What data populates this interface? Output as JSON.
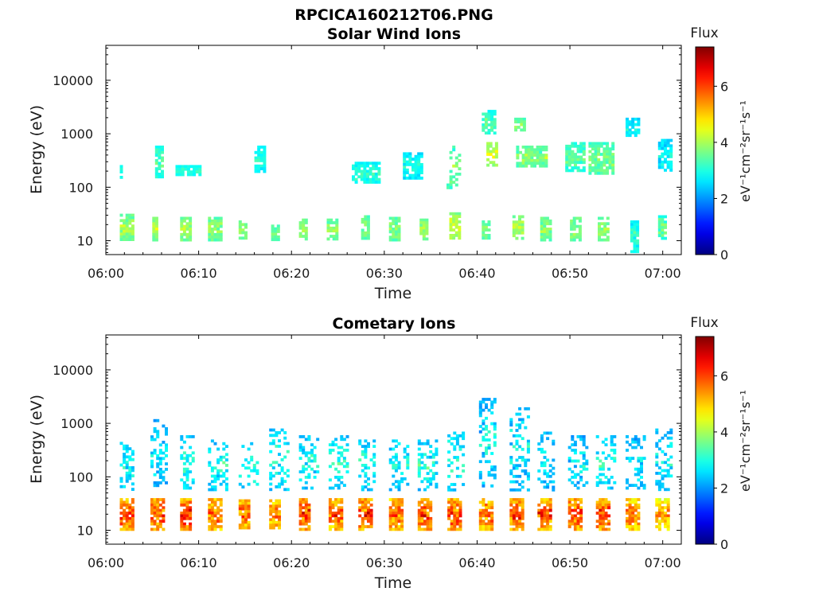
{
  "figure_title": "RPCICA160212T06.PNG",
  "chart_data": [
    {
      "type": "heatmap",
      "title": "Solar Wind Ions",
      "xlabel": "Time",
      "ylabel": "Energy (eV)",
      "x_ticks": [
        "06:00",
        "06:10",
        "06:20",
        "06:30",
        "06:40",
        "06:50",
        "07:00"
      ],
      "y_ticks": [
        "10",
        "100",
        "1000",
        "10000"
      ],
      "x_range_minutes": [
        0,
        62
      ],
      "y_range_ev": [
        5.5,
        45000
      ],
      "y_scale": "log",
      "colorbar": {
        "label": "Flux",
        "unit": "eV⁻¹cm⁻²sr⁻¹s⁻¹",
        "ticks": [
          "0",
          "2",
          "4",
          "6"
        ],
        "range": [
          0,
          7.4
        ]
      },
      "clusters": [
        {
          "t": [
            1.5,
            2.8
          ],
          "e": [
            11,
            32
          ],
          "flux": [
            3.0,
            4.6
          ]
        },
        {
          "t": [
            5.0,
            5.6
          ],
          "e": [
            11,
            28
          ],
          "flux": [
            3.2,
            4.6
          ]
        },
        {
          "t": [
            8.0,
            9.0
          ],
          "e": [
            11,
            28
          ],
          "flux": [
            3.2,
            4.4
          ]
        },
        {
          "t": [
            11.0,
            12.3
          ],
          "e": [
            11,
            28
          ],
          "flux": [
            3.0,
            4.4
          ]
        },
        {
          "t": [
            14.3,
            15.0
          ],
          "e": [
            11,
            24
          ],
          "flux": [
            3.2,
            4.2
          ]
        },
        {
          "t": [
            17.8,
            18.6
          ],
          "e": [
            11,
            20
          ],
          "flux": [
            3.0,
            4.0
          ]
        },
        {
          "t": [
            20.8,
            21.5
          ],
          "e": [
            11,
            26
          ],
          "flux": [
            3.2,
            4.3
          ]
        },
        {
          "t": [
            23.8,
            25.0
          ],
          "e": [
            11,
            26
          ],
          "flux": [
            3.0,
            4.2
          ]
        },
        {
          "t": [
            27.5,
            28.2
          ],
          "e": [
            11,
            30
          ],
          "flux": [
            3.0,
            4.2
          ]
        },
        {
          "t": [
            30.5,
            31.6
          ],
          "e": [
            11,
            28
          ],
          "flux": [
            3.0,
            4.4
          ]
        },
        {
          "t": [
            33.8,
            34.5
          ],
          "e": [
            11,
            26
          ],
          "flux": [
            3.2,
            4.5
          ]
        },
        {
          "t": [
            37.0,
            38.0
          ],
          "e": [
            11,
            34
          ],
          "flux": [
            3.3,
            4.8
          ]
        },
        {
          "t": [
            40.5,
            41.3
          ],
          "e": [
            11,
            24
          ],
          "flux": [
            3.0,
            4.2
          ]
        },
        {
          "t": [
            43.8,
            44.8
          ],
          "e": [
            11,
            30
          ],
          "flux": [
            3.2,
            4.6
          ]
        },
        {
          "t": [
            46.8,
            47.8
          ],
          "e": [
            11,
            28
          ],
          "flux": [
            3.0,
            4.4
          ]
        },
        {
          "t": [
            50.0,
            51.0
          ],
          "e": [
            11,
            28
          ],
          "flux": [
            3.0,
            4.4
          ]
        },
        {
          "t": [
            53.0,
            54.0
          ],
          "e": [
            11,
            28
          ],
          "flux": [
            3.0,
            4.4
          ]
        },
        {
          "t": [
            56.5,
            57.2
          ],
          "e": [
            6,
            24
          ],
          "flux": [
            2.2,
            3.8
          ]
        },
        {
          "t": [
            59.5,
            60.3
          ],
          "e": [
            11,
            30
          ],
          "flux": [
            2.6,
            4.2
          ]
        },
        {
          "t": [
            1.5,
            1.8
          ],
          "e": [
            150,
            260
          ],
          "flux": [
            2.4,
            3.4
          ]
        },
        {
          "t": [
            5.3,
            6.0
          ],
          "e": [
            160,
            600
          ],
          "flux": [
            2.6,
            3.8
          ]
        },
        {
          "t": [
            7.5,
            10.0
          ],
          "e": [
            180,
            260
          ],
          "flux": [
            2.6,
            3.4
          ]
        },
        {
          "t": [
            16.0,
            17.0
          ],
          "e": [
            200,
            600
          ],
          "flux": [
            2.4,
            3.4
          ]
        },
        {
          "t": [
            26.5,
            29.5
          ],
          "e": [
            120,
            300
          ],
          "flux": [
            2.4,
            3.6
          ]
        },
        {
          "t": [
            32.0,
            34.0
          ],
          "e": [
            150,
            450
          ],
          "flux": [
            2.2,
            3.4
          ]
        },
        {
          "t": [
            36.7,
            38.2
          ],
          "e": [
            100,
            600
          ],
          "flux": [
            2.6,
            4.2
          ]
        },
        {
          "t": [
            40.5,
            41.8
          ],
          "e": [
            1100,
            2800
          ],
          "flux": [
            2.4,
            4.0
          ]
        },
        {
          "t": [
            41.0,
            42.2
          ],
          "e": [
            250,
            700
          ],
          "flux": [
            3.4,
            4.8
          ]
        },
        {
          "t": [
            44.0,
            45.0
          ],
          "e": [
            1200,
            2000
          ],
          "flux": [
            3.0,
            4.2
          ]
        },
        {
          "t": [
            44.2,
            47.5
          ],
          "e": [
            250,
            600
          ],
          "flux": [
            2.8,
            4.4
          ]
        },
        {
          "t": [
            49.5,
            51.5
          ],
          "e": [
            200,
            700
          ],
          "flux": [
            2.6,
            4.0
          ]
        },
        {
          "t": [
            52.0,
            54.5
          ],
          "e": [
            180,
            700
          ],
          "flux": [
            2.8,
            4.2
          ]
        },
        {
          "t": [
            56.0,
            57.5
          ],
          "e": [
            900,
            2000
          ],
          "flux": [
            2.2,
            3.2
          ]
        },
        {
          "t": [
            59.5,
            61.0
          ],
          "e": [
            200,
            800
          ],
          "flux": [
            2.0,
            3.4
          ]
        }
      ]
    },
    {
      "type": "heatmap",
      "title": "Cometary Ions",
      "xlabel": "Time",
      "ylabel": "Energy (eV)",
      "x_ticks": [
        "06:00",
        "06:10",
        "06:20",
        "06:30",
        "06:40",
        "06:50",
        "07:00"
      ],
      "y_ticks": [
        "10",
        "100",
        "1000",
        "10000"
      ],
      "x_range_minutes": [
        0,
        62
      ],
      "y_range_ev": [
        5.5,
        45000
      ],
      "y_scale": "log",
      "colorbar": {
        "label": "Flux",
        "unit": "eV⁻¹cm⁻²sr⁻¹s⁻¹",
        "ticks": [
          "0",
          "2",
          "4",
          "6"
        ],
        "range": [
          0,
          7.4
        ]
      },
      "clusters": [
        {
          "t": [
            1.5,
            3.0
          ],
          "e": [
            11,
            40
          ],
          "flux": [
            4.4,
            7.0
          ]
        },
        {
          "t": [
            4.8,
            6.2
          ],
          "e": [
            11,
            40
          ],
          "flux": [
            4.4,
            7.0
          ]
        },
        {
          "t": [
            8.0,
            9.2
          ],
          "e": [
            11,
            40
          ],
          "flux": [
            4.4,
            7.2
          ]
        },
        {
          "t": [
            11.0,
            12.3
          ],
          "e": [
            11,
            40
          ],
          "flux": [
            4.2,
            6.8
          ]
        },
        {
          "t": [
            14.3,
            15.5
          ],
          "e": [
            11,
            38
          ],
          "flux": [
            4.2,
            6.8
          ]
        },
        {
          "t": [
            17.6,
            18.8
          ],
          "e": [
            11,
            38
          ],
          "flux": [
            4.0,
            6.6
          ]
        },
        {
          "t": [
            20.8,
            22.0
          ],
          "e": [
            11,
            40
          ],
          "flux": [
            4.4,
            7.0
          ]
        },
        {
          "t": [
            24.0,
            25.3
          ],
          "e": [
            11,
            40
          ],
          "flux": [
            4.2,
            6.8
          ]
        },
        {
          "t": [
            27.2,
            28.5
          ],
          "e": [
            11,
            40
          ],
          "flux": [
            4.4,
            7.0
          ]
        },
        {
          "t": [
            30.5,
            31.8
          ],
          "e": [
            11,
            40
          ],
          "flux": [
            4.2,
            6.8
          ]
        },
        {
          "t": [
            33.6,
            35.0
          ],
          "e": [
            11,
            40
          ],
          "flux": [
            4.4,
            7.0
          ]
        },
        {
          "t": [
            36.8,
            38.2
          ],
          "e": [
            11,
            40
          ],
          "flux": [
            4.4,
            7.0
          ]
        },
        {
          "t": [
            40.2,
            41.5
          ],
          "e": [
            11,
            40
          ],
          "flux": [
            4.2,
            6.8
          ]
        },
        {
          "t": [
            43.5,
            44.8
          ],
          "e": [
            11,
            40
          ],
          "flux": [
            4.4,
            7.0
          ]
        },
        {
          "t": [
            46.5,
            47.8
          ],
          "e": [
            11,
            40
          ],
          "flux": [
            4.2,
            6.8
          ]
        },
        {
          "t": [
            49.8,
            51.2
          ],
          "e": [
            11,
            40
          ],
          "flux": [
            4.4,
            7.0
          ]
        },
        {
          "t": [
            52.8,
            54.2
          ],
          "e": [
            11,
            40
          ],
          "flux": [
            4.4,
            7.0
          ]
        },
        {
          "t": [
            56.0,
            57.5
          ],
          "e": [
            11,
            40
          ],
          "flux": [
            4.0,
            6.6
          ]
        },
        {
          "t": [
            59.2,
            60.7
          ],
          "e": [
            11,
            40
          ],
          "flux": [
            3.8,
            6.2
          ]
        },
        {
          "t": [
            1.5,
            3.0
          ],
          "e": [
            60,
            450
          ],
          "flux": [
            1.8,
            3.6
          ]
        },
        {
          "t": [
            4.8,
            6.5
          ],
          "e": [
            70,
            1200
          ],
          "flux": [
            1.6,
            3.4
          ]
        },
        {
          "t": [
            8.0,
            9.5
          ],
          "e": [
            60,
            600
          ],
          "flux": [
            1.8,
            3.6
          ]
        },
        {
          "t": [
            11.0,
            13.0
          ],
          "e": [
            60,
            500
          ],
          "flux": [
            1.8,
            3.6
          ]
        },
        {
          "t": [
            14.3,
            16.2
          ],
          "e": [
            60,
            500
          ],
          "flux": [
            1.8,
            3.6
          ]
        },
        {
          "t": [
            17.6,
            19.5
          ],
          "e": [
            60,
            900
          ],
          "flux": [
            1.8,
            3.6
          ]
        },
        {
          "t": [
            20.8,
            22.8
          ],
          "e": [
            60,
            600
          ],
          "flux": [
            1.8,
            3.6
          ]
        },
        {
          "t": [
            24.0,
            26.0
          ],
          "e": [
            60,
            600
          ],
          "flux": [
            1.8,
            3.6
          ]
        },
        {
          "t": [
            27.2,
            29.0
          ],
          "e": [
            60,
            500
          ],
          "flux": [
            1.8,
            3.6
          ]
        },
        {
          "t": [
            30.5,
            32.5
          ],
          "e": [
            60,
            500
          ],
          "flux": [
            1.8,
            3.6
          ]
        },
        {
          "t": [
            33.6,
            35.5
          ],
          "e": [
            60,
            500
          ],
          "flux": [
            1.8,
            3.6
          ]
        },
        {
          "t": [
            36.8,
            38.6
          ],
          "e": [
            60,
            700
          ],
          "flux": [
            1.8,
            3.6
          ]
        },
        {
          "t": [
            40.2,
            42.0
          ],
          "e": [
            60,
            3000
          ],
          "flux": [
            1.6,
            3.4
          ]
        },
        {
          "t": [
            43.5,
            45.5
          ],
          "e": [
            60,
            2000
          ],
          "flux": [
            1.6,
            3.4
          ]
        },
        {
          "t": [
            46.5,
            48.3
          ],
          "e": [
            60,
            700
          ],
          "flux": [
            1.6,
            3.4
          ]
        },
        {
          "t": [
            49.8,
            51.8
          ],
          "e": [
            60,
            600
          ],
          "flux": [
            1.6,
            3.4
          ]
        },
        {
          "t": [
            52.8,
            54.8
          ],
          "e": [
            60,
            600
          ],
          "flux": [
            1.8,
            3.6
          ]
        },
        {
          "t": [
            56.0,
            58.0
          ],
          "e": [
            60,
            600
          ],
          "flux": [
            1.6,
            3.4
          ]
        },
        {
          "t": [
            59.2,
            61.0
          ],
          "e": [
            60,
            800
          ],
          "flux": [
            1.6,
            3.4
          ]
        }
      ]
    }
  ]
}
